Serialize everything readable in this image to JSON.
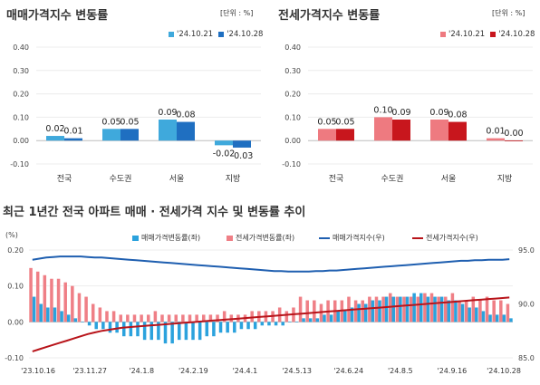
{
  "chart_data": [
    {
      "type": "bar",
      "title": "매매가격지수 변동률",
      "unit": "[단위 : %]",
      "categories": [
        "전국",
        "수도권",
        "서울",
        "지방"
      ],
      "series": [
        {
          "name": "'24.10.21",
          "values": [
            0.02,
            0.05,
            0.09,
            -0.02
          ]
        },
        {
          "name": "'24.10.28",
          "values": [
            0.01,
            0.05,
            0.08,
            -0.03
          ]
        }
      ],
      "data_labels": [
        [
          "0.02",
          "0.01"
        ],
        [
          "0.05",
          "0.05"
        ],
        [
          "0.09",
          "0.08"
        ],
        [
          "-0.02",
          "-0.03"
        ]
      ],
      "yticks": [
        "0.40",
        "0.30",
        "0.20",
        "0.10",
        "0.00",
        "-0.10"
      ],
      "ylim": [
        -0.1,
        0.4
      ],
      "colors": [
        "#3fa9dc",
        "#1f6fc1"
      ]
    },
    {
      "type": "bar",
      "title": "전세가격지수 변동률",
      "unit": "[단위 : %]",
      "categories": [
        "전국",
        "수도권",
        "서울",
        "지방"
      ],
      "series": [
        {
          "name": "'24.10.21",
          "values": [
            0.05,
            0.1,
            0.09,
            0.01
          ]
        },
        {
          "name": "'24.10.28",
          "values": [
            0.05,
            0.09,
            0.08,
            0.0
          ]
        }
      ],
      "data_labels": [
        [
          "0.05",
          "0.05"
        ],
        [
          "0.10",
          "0.09"
        ],
        [
          "0.09",
          "0.08"
        ],
        [
          "0.01",
          "0.00"
        ]
      ],
      "yticks": [
        "0.40",
        "0.30",
        "0.20",
        "0.10",
        "0.00",
        "-0.10"
      ],
      "ylim": [
        -0.1,
        0.4
      ],
      "colors": [
        "#ee7a80",
        "#c8161d"
      ]
    },
    {
      "type": "bar",
      "title": "최근 1년간 전국 아파트 매매 · 전세가격 지수 및 변동률 추이",
      "left_unit": "(%)",
      "left_yticks": [
        "0.20",
        "0.10",
        "0.00",
        "-0.10"
      ],
      "ylim_left": [
        -0.1,
        0.2
      ],
      "right_yticks": [
        "95.0",
        "90.0",
        "85.0"
      ],
      "ylim_right": [
        85,
        95
      ],
      "xticks": [
        "'23.10.16",
        "'23.11.27",
        "'24.1.8",
        "'24.2.19",
        "'24.4.1",
        "'24.5.13",
        "'24.6.24",
        "'24.8.5",
        "'24.9.16",
        "'24.10.28"
      ],
      "series": [
        {
          "name": "매매가격변동률(좌)",
          "kind": "bar",
          "values": [
            0.07,
            0.05,
            0.04,
            0.04,
            0.03,
            0.02,
            0.01,
            0.0,
            -0.01,
            -0.02,
            -0.02,
            -0.03,
            -0.03,
            -0.04,
            -0.04,
            -0.04,
            -0.05,
            -0.05,
            -0.05,
            -0.06,
            -0.06,
            -0.05,
            -0.05,
            -0.05,
            -0.05,
            -0.04,
            -0.04,
            -0.03,
            -0.03,
            -0.03,
            -0.02,
            -0.02,
            -0.02,
            -0.01,
            -0.01,
            -0.01,
            -0.01,
            0.0,
            0.0,
            0.01,
            0.01,
            0.01,
            0.02,
            0.02,
            0.03,
            0.03,
            0.04,
            0.05,
            0.05,
            0.06,
            0.06,
            0.07,
            0.07,
            0.07,
            0.07,
            0.08,
            0.08,
            0.07,
            0.07,
            0.07,
            0.06,
            0.06,
            0.05,
            0.04,
            0.04,
            0.03,
            0.02,
            0.02,
            0.02,
            0.01
          ]
        },
        {
          "name": "전세가격변동률(좌)",
          "kind": "bar",
          "values": [
            0.15,
            0.14,
            0.13,
            0.12,
            0.12,
            0.11,
            0.1,
            0.08,
            0.07,
            0.05,
            0.04,
            0.03,
            0.03,
            0.02,
            0.02,
            0.02,
            0.02,
            0.02,
            0.03,
            0.02,
            0.02,
            0.02,
            0.02,
            0.02,
            0.02,
            0.02,
            0.02,
            0.02,
            0.03,
            0.02,
            0.02,
            0.02,
            0.03,
            0.03,
            0.03,
            0.03,
            0.04,
            0.03,
            0.04,
            0.07,
            0.06,
            0.06,
            0.05,
            0.06,
            0.06,
            0.06,
            0.07,
            0.06,
            0.06,
            0.07,
            0.07,
            0.07,
            0.08,
            0.07,
            0.07,
            0.07,
            0.07,
            0.08,
            0.08,
            0.07,
            0.07,
            0.08,
            0.06,
            0.06,
            0.07,
            0.06,
            0.07,
            0.06,
            0.06,
            0.05
          ]
        },
        {
          "name": "매매가격지수(우)",
          "kind": "line",
          "values": [
            94.1,
            94.2,
            94.3,
            94.35,
            94.4,
            94.4,
            94.4,
            94.4,
            94.35,
            94.3,
            94.3,
            94.25,
            94.2,
            94.15,
            94.1,
            94.05,
            94.0,
            93.95,
            93.9,
            93.85,
            93.8,
            93.75,
            93.7,
            93.65,
            93.6,
            93.55,
            93.5,
            93.45,
            93.4,
            93.35,
            93.3,
            93.25,
            93.2,
            93.15,
            93.1,
            93.05,
            93.05,
            93.0,
            93.0,
            93.0,
            93.0,
            93.05,
            93.05,
            93.1,
            93.1,
            93.15,
            93.2,
            93.25,
            93.3,
            93.35,
            93.4,
            93.45,
            93.5,
            93.55,
            93.6,
            93.65,
            93.7,
            93.75,
            93.8,
            93.85,
            93.9,
            93.95,
            94.0,
            94.0,
            94.05,
            94.05,
            94.1,
            94.1,
            94.1,
            94.15
          ]
        },
        {
          "name": "전세가격지수(우)",
          "kind": "line",
          "values": [
            85.6,
            85.8,
            86.0,
            86.2,
            86.4,
            86.6,
            86.8,
            87.0,
            87.2,
            87.35,
            87.5,
            87.6,
            87.7,
            87.8,
            87.85,
            87.9,
            87.95,
            88.0,
            88.05,
            88.1,
            88.15,
            88.2,
            88.25,
            88.3,
            88.35,
            88.4,
            88.45,
            88.5,
            88.55,
            88.6,
            88.65,
            88.7,
            88.75,
            88.8,
            88.85,
            88.9,
            88.95,
            89.0,
            89.05,
            89.1,
            89.15,
            89.2,
            89.25,
            89.3,
            89.35,
            89.4,
            89.45,
            89.5,
            89.55,
            89.6,
            89.65,
            89.7,
            89.75,
            89.8,
            89.85,
            89.9,
            89.95,
            90.0,
            90.05,
            90.1,
            90.15,
            90.2,
            90.25,
            90.3,
            90.35,
            90.4,
            90.45,
            90.5,
            90.55,
            90.6
          ]
        }
      ],
      "colors": [
        "#2ba2dd",
        "#ef7f86",
        "#1f5fb0",
        "#b8141a"
      ]
    }
  ]
}
